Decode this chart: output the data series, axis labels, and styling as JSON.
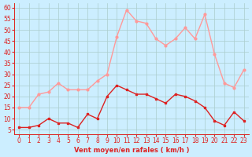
{
  "hours": [
    0,
    1,
    2,
    3,
    4,
    5,
    6,
    7,
    8,
    9,
    10,
    11,
    12,
    13,
    14,
    15,
    16,
    17,
    18,
    19,
    20,
    21,
    22,
    23
  ],
  "wind_avg": [
    6,
    6,
    7,
    10,
    8,
    8,
    6,
    12,
    10,
    20,
    25,
    23,
    21,
    21,
    19,
    17,
    21,
    20,
    18,
    15,
    9,
    7,
    13,
    9
  ],
  "wind_gust": [
    15,
    15,
    21,
    22,
    26,
    23,
    23,
    23,
    27,
    30,
    47,
    59,
    54,
    53,
    46,
    43,
    46,
    51,
    46,
    57,
    39,
    26,
    24,
    32
  ],
  "bg_color": "#cceeff",
  "grid_color": "#aacccc",
  "line_avg_color": "#dd2222",
  "line_gust_color": "#ff9999",
  "xlabel": "Vent moyen/en rafales ( km/h )",
  "xlabel_color": "#dd2222",
  "tick_color": "#dd2222",
  "yticks": [
    5,
    10,
    15,
    20,
    25,
    30,
    35,
    40,
    45,
    50,
    55,
    60
  ],
  "ylim": [
    3,
    62
  ],
  "xlim": [
    -0.5,
    23.5
  ]
}
